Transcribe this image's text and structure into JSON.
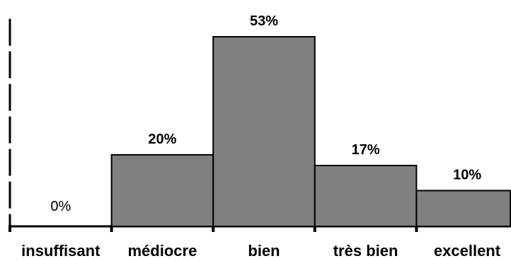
{
  "chart_data": {
    "type": "bar",
    "categories": [
      "insuffisant",
      "médiocre",
      "bien",
      "très bien",
      "excellent"
    ],
    "values": [
      0,
      20,
      53,
      17,
      10
    ],
    "value_labels": [
      "0%",
      "20%",
      "53%",
      "17%",
      "10%"
    ],
    "ylim": [
      0,
      60
    ],
    "grid": false,
    "legend": "none",
    "colors": {
      "bar_fill": "#808080",
      "bar_stroke": "#000000",
      "axis": "#000000"
    }
  }
}
